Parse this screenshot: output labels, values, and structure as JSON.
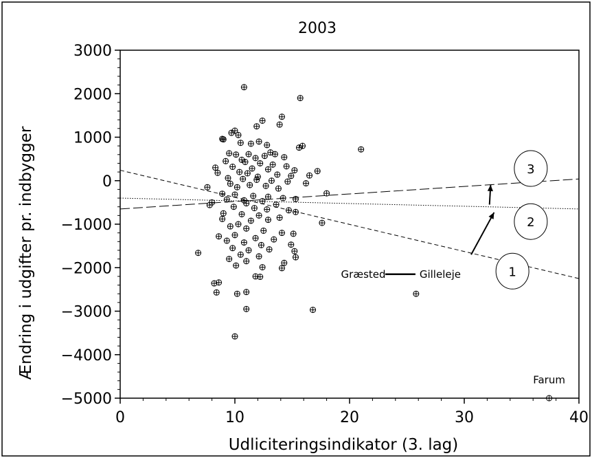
{
  "chart_data": {
    "type": "scatter",
    "title": "2003",
    "xlabel": "Udliciteringsindikator  (3. lag)",
    "ylabel": "Ændring i udgifter pr. indbygger",
    "xlim": [
      0,
      40
    ],
    "ylim": [
      -5000,
      3000
    ],
    "x_ticks": [
      0,
      10,
      20,
      30,
      40
    ],
    "y_ticks": [
      -5000,
      -4000,
      -3000,
      -2000,
      -1000,
      0,
      1000,
      2000,
      3000
    ],
    "x_tick_labels": [
      "0",
      "10",
      "20",
      "30",
      "40"
    ],
    "y_tick_labels": [
      "−5000",
      "−4000",
      "−3000",
      "−2000",
      "−1000",
      "0",
      "1000",
      "2000",
      "3000"
    ],
    "grid": false,
    "marker": "circle-plus",
    "points": [
      [
        10.8,
        2150
      ],
      [
        15.7,
        1900
      ],
      [
        14.1,
        1470
      ],
      [
        12.4,
        1380
      ],
      [
        11.9,
        1250
      ],
      [
        13.9,
        1290
      ],
      [
        10.0,
        1150
      ],
      [
        9.7,
        1100
      ],
      [
        10.3,
        1050
      ],
      [
        9.0,
        950
      ],
      [
        8.9,
        960
      ],
      [
        10.5,
        870
      ],
      [
        11.4,
        850
      ],
      [
        12.1,
        900
      ],
      [
        12.8,
        820
      ],
      [
        15.9,
        800
      ],
      [
        15.6,
        760
      ],
      [
        21.0,
        720
      ],
      [
        13.1,
        650
      ],
      [
        9.5,
        630
      ],
      [
        10.1,
        600
      ],
      [
        11.2,
        610
      ],
      [
        12.6,
        570
      ],
      [
        13.5,
        610
      ],
      [
        14.3,
        540
      ],
      [
        11.8,
        520
      ],
      [
        10.6,
        480
      ],
      [
        9.2,
        450
      ],
      [
        10.9,
        430
      ],
      [
        12.2,
        400
      ],
      [
        13.3,
        370
      ],
      [
        14.5,
        330
      ],
      [
        9.8,
        320
      ],
      [
        8.3,
        300
      ],
      [
        11.5,
        280
      ],
      [
        12.9,
        260
      ],
      [
        15.2,
        240
      ],
      [
        17.2,
        220
      ],
      [
        10.4,
        200
      ],
      [
        8.5,
        180
      ],
      [
        11.1,
        170
      ],
      [
        13.7,
        140
      ],
      [
        14.9,
        110
      ],
      [
        16.5,
        120
      ],
      [
        12.0,
        90
      ],
      [
        9.4,
        60
      ],
      [
        10.7,
        40
      ],
      [
        11.9,
        20
      ],
      [
        13.2,
        0
      ],
      [
        14.6,
        -20
      ],
      [
        16.2,
        -60
      ],
      [
        9.6,
        -70
      ],
      [
        11.3,
        -100
      ],
      [
        12.7,
        -120
      ],
      [
        7.6,
        -150
      ],
      [
        10.2,
        -150
      ],
      [
        13.8,
        -180
      ],
      [
        18.0,
        -290
      ],
      [
        8.9,
        -300
      ],
      [
        10.0,
        -320
      ],
      [
        11.6,
        -350
      ],
      [
        12.9,
        -370
      ],
      [
        14.2,
        -400
      ],
      [
        15.3,
        -420
      ],
      [
        9.3,
        -430
      ],
      [
        10.8,
        -450
      ],
      [
        12.4,
        -470
      ],
      [
        8.0,
        -500
      ],
      [
        11.0,
        -520
      ],
      [
        13.6,
        -550
      ],
      [
        7.8,
        -560
      ],
      [
        9.9,
        -600
      ],
      [
        11.7,
        -630
      ],
      [
        12.8,
        -660
      ],
      [
        14.7,
        -680
      ],
      [
        15.3,
        -720
      ],
      [
        9.0,
        -750
      ],
      [
        10.6,
        -770
      ],
      [
        12.1,
        -800
      ],
      [
        13.9,
        -850
      ],
      [
        8.9,
        -880
      ],
      [
        11.4,
        -920
      ],
      [
        12.9,
        -900
      ],
      [
        17.6,
        -970
      ],
      [
        10.3,
        -1000
      ],
      [
        9.6,
        -1050
      ],
      [
        11.0,
        -1100
      ],
      [
        12.5,
        -1150
      ],
      [
        14.1,
        -1200
      ],
      [
        15.1,
        -1220
      ],
      [
        10.0,
        -1250
      ],
      [
        8.6,
        -1280
      ],
      [
        11.8,
        -1320
      ],
      [
        13.4,
        -1350
      ],
      [
        9.3,
        -1380
      ],
      [
        10.8,
        -1420
      ],
      [
        12.3,
        -1480
      ],
      [
        14.9,
        -1470
      ],
      [
        9.8,
        -1550
      ],
      [
        11.2,
        -1600
      ],
      [
        13.0,
        -1580
      ],
      [
        15.2,
        -1620
      ],
      [
        6.8,
        -1660
      ],
      [
        10.5,
        -1700
      ],
      [
        12.1,
        -1740
      ],
      [
        15.3,
        -1760
      ],
      [
        9.5,
        -1800
      ],
      [
        11.0,
        -1850
      ],
      [
        14.3,
        -1890
      ],
      [
        10.1,
        -1950
      ],
      [
        12.4,
        -1990
      ],
      [
        14.1,
        -2010
      ],
      [
        8.6,
        -2340
      ],
      [
        8.2,
        -2360
      ],
      [
        11.8,
        -2200
      ],
      [
        12.2,
        -2210
      ],
      [
        11.0,
        -2560
      ],
      [
        10.2,
        -2600
      ],
      [
        8.4,
        -2570
      ],
      [
        25.8,
        -2600
      ],
      [
        11.0,
        -2950
      ],
      [
        16.8,
        -2970
      ],
      [
        10.0,
        -3580
      ],
      [
        37.4,
        -5000
      ]
    ],
    "lines": [
      {
        "label": "1",
        "style": "dashed-short",
        "x": [
          0,
          40
        ],
        "y": [
          240,
          -2250
        ]
      },
      {
        "label": "2",
        "style": "dotted",
        "x": [
          0,
          40
        ],
        "y": [
          -400,
          -650
        ]
      },
      {
        "label": "3",
        "style": "dashed-long",
        "x": [
          0,
          40
        ],
        "y": [
          -650,
          40
        ]
      }
    ],
    "annotations": [
      {
        "text": "Græsted",
        "x": 21.2,
        "y": -2230
      },
      {
        "text": "Gilleleje",
        "x": 27.9,
        "y": -2230
      },
      {
        "text": "Farum",
        "x": 37.4,
        "y": -4660
      }
    ],
    "callouts": [
      {
        "label": "1",
        "center_x": 34.2,
        "center_y": -2080
      },
      {
        "label": "2",
        "center_x": 35.8,
        "center_y": -940
      },
      {
        "label": "3",
        "center_x": 35.8,
        "center_y": 280
      }
    ],
    "arrows": [
      {
        "from_x": 30.6,
        "from_y": -1700,
        "to_x": 32.6,
        "to_y": -730
      },
      {
        "from_x": 32.2,
        "from_y": -550,
        "to_x": 32.3,
        "to_y": -95
      }
    ]
  }
}
